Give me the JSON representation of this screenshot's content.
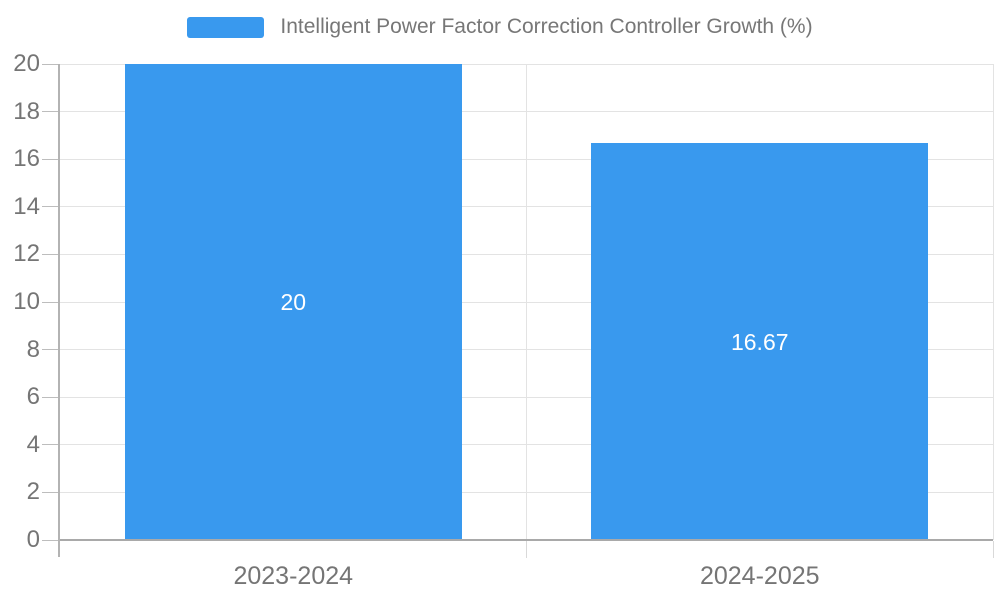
{
  "legend": {
    "title": "Intelligent Power Factor Correction Controller Growth (%)"
  },
  "chart_data": {
    "type": "bar",
    "title": "Intelligent Power Factor Correction Controller Growth (%)",
    "categories": [
      "2023-2024",
      "2024-2025"
    ],
    "values": [
      20,
      16.67
    ],
    "bar_labels": [
      "20",
      "16.67"
    ],
    "yticks": [
      0,
      2,
      4,
      6,
      8,
      10,
      12,
      14,
      16,
      18,
      20
    ],
    "ylim": [
      0,
      20
    ],
    "xlabel": "",
    "ylabel": "",
    "grid": true,
    "legend_position": "top",
    "bar_color": "#3999EE",
    "bar_label_color": "#FFFFFF",
    "axis_text_color": "#757575",
    "legend_text_color": "#777777"
  }
}
